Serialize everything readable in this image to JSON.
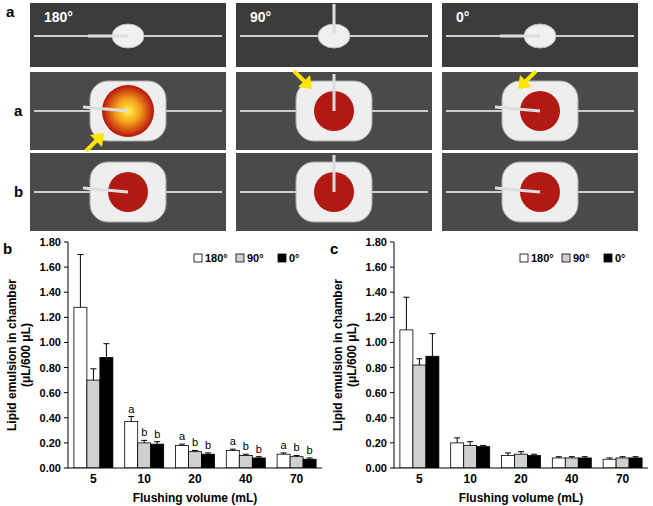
{
  "panel_a": {
    "label": "a",
    "columns": [
      "180°",
      "90°",
      "0°"
    ],
    "rows": [
      "a",
      "b"
    ]
  },
  "chart_data": [
    {
      "type": "bar",
      "title": "b",
      "x_label": "Flushing volume (mL)",
      "y_label": "Lipid emulsion in chamber (μL/600 μL)",
      "categories": [
        "5",
        "10",
        "20",
        "40",
        "70"
      ],
      "series": [
        {
          "name": "180°",
          "color": "#ffffff",
          "values": [
            1.28,
            0.37,
            0.18,
            0.14,
            0.11
          ],
          "errors": [
            0.42,
            0.04,
            0.01,
            0.01,
            0.01
          ]
        },
        {
          "name": "90°",
          "color": "#d0d0d0",
          "values": [
            0.7,
            0.2,
            0.13,
            0.1,
            0.09
          ],
          "errors": [
            0.09,
            0.02,
            0.01,
            0.01,
            0.01
          ]
        },
        {
          "name": "0°",
          "color": "#000000",
          "values": [
            0.88,
            0.19,
            0.11,
            0.08,
            0.07
          ],
          "errors": [
            0.11,
            0.02,
            0.01,
            0.01,
            0.01
          ]
        }
      ],
      "annotations": [
        {
          "text": "a",
          "category": 1,
          "series": 0
        },
        {
          "text": "b",
          "category": 1,
          "series": 1
        },
        {
          "text": "b",
          "category": 1,
          "series": 2
        },
        {
          "text": "a",
          "category": 2,
          "series": 0
        },
        {
          "text": "b",
          "category": 2,
          "series": 1
        },
        {
          "text": "b",
          "category": 2,
          "series": 2
        },
        {
          "text": "a",
          "category": 3,
          "series": 0
        },
        {
          "text": "b",
          "category": 3,
          "series": 1
        },
        {
          "text": "b",
          "category": 3,
          "series": 2
        },
        {
          "text": "a",
          "category": 4,
          "series": 0
        },
        {
          "text": "b",
          "category": 4,
          "series": 1
        },
        {
          "text": "b",
          "category": 4,
          "series": 2
        }
      ],
      "ylim": [
        0,
        1.8
      ],
      "yticks": [
        {
          "value": 0,
          "label": "0.00"
        },
        {
          "value": 0.2,
          "label": "0.20"
        },
        {
          "value": 0.4,
          "label": "0.40"
        },
        {
          "value": 0.6,
          "label": "0.60"
        },
        {
          "value": 0.8,
          "label": "0.80"
        },
        {
          "value": 1.0,
          "label": "1.00"
        },
        {
          "value": 1.2,
          "label": "1.20"
        },
        {
          "value": 1.4,
          "label": "1.40"
        },
        {
          "value": 1.6,
          "label": "1.60"
        },
        {
          "value": 1.8,
          "label": "1.80"
        }
      ],
      "grid": false,
      "legend": "upper right"
    },
    {
      "type": "bar",
      "title": "c",
      "x_label": "Flushing volume (mL)",
      "y_label": "Lipid emulsion in chamber (μL/600 μL)",
      "categories": [
        "5",
        "10",
        "20",
        "40",
        "70"
      ],
      "series": [
        {
          "name": "180°",
          "color": "#ffffff",
          "values": [
            1.1,
            0.2,
            0.1,
            0.08,
            0.07
          ],
          "errors": [
            0.26,
            0.04,
            0.02,
            0.01,
            0.01
          ]
        },
        {
          "name": "90°",
          "color": "#d0d0d0",
          "values": [
            0.82,
            0.18,
            0.11,
            0.08,
            0.08
          ],
          "errors": [
            0.05,
            0.03,
            0.02,
            0.01,
            0.01
          ]
        },
        {
          "name": "0°",
          "color": "#000000",
          "values": [
            0.89,
            0.17,
            0.1,
            0.08,
            0.08
          ],
          "errors": [
            0.18,
            0.01,
            0.01,
            0.01,
            0.01
          ]
        }
      ],
      "ylim": [
        0,
        1.8
      ],
      "yticks": [
        {
          "value": 0,
          "label": "0.00"
        },
        {
          "value": 0.2,
          "label": "0.20"
        },
        {
          "value": 0.4,
          "label": "0.40"
        },
        {
          "value": 0.6,
          "label": "0.60"
        },
        {
          "value": 0.8,
          "label": "0.80"
        },
        {
          "value": 1.0,
          "label": "1.00"
        },
        {
          "value": 1.2,
          "label": "1.20"
        },
        {
          "value": 1.4,
          "label": "1.40"
        },
        {
          "value": 1.6,
          "label": "1.60"
        },
        {
          "value": 1.8,
          "label": "1.80"
        }
      ],
      "grid": false,
      "legend": "upper right"
    }
  ]
}
